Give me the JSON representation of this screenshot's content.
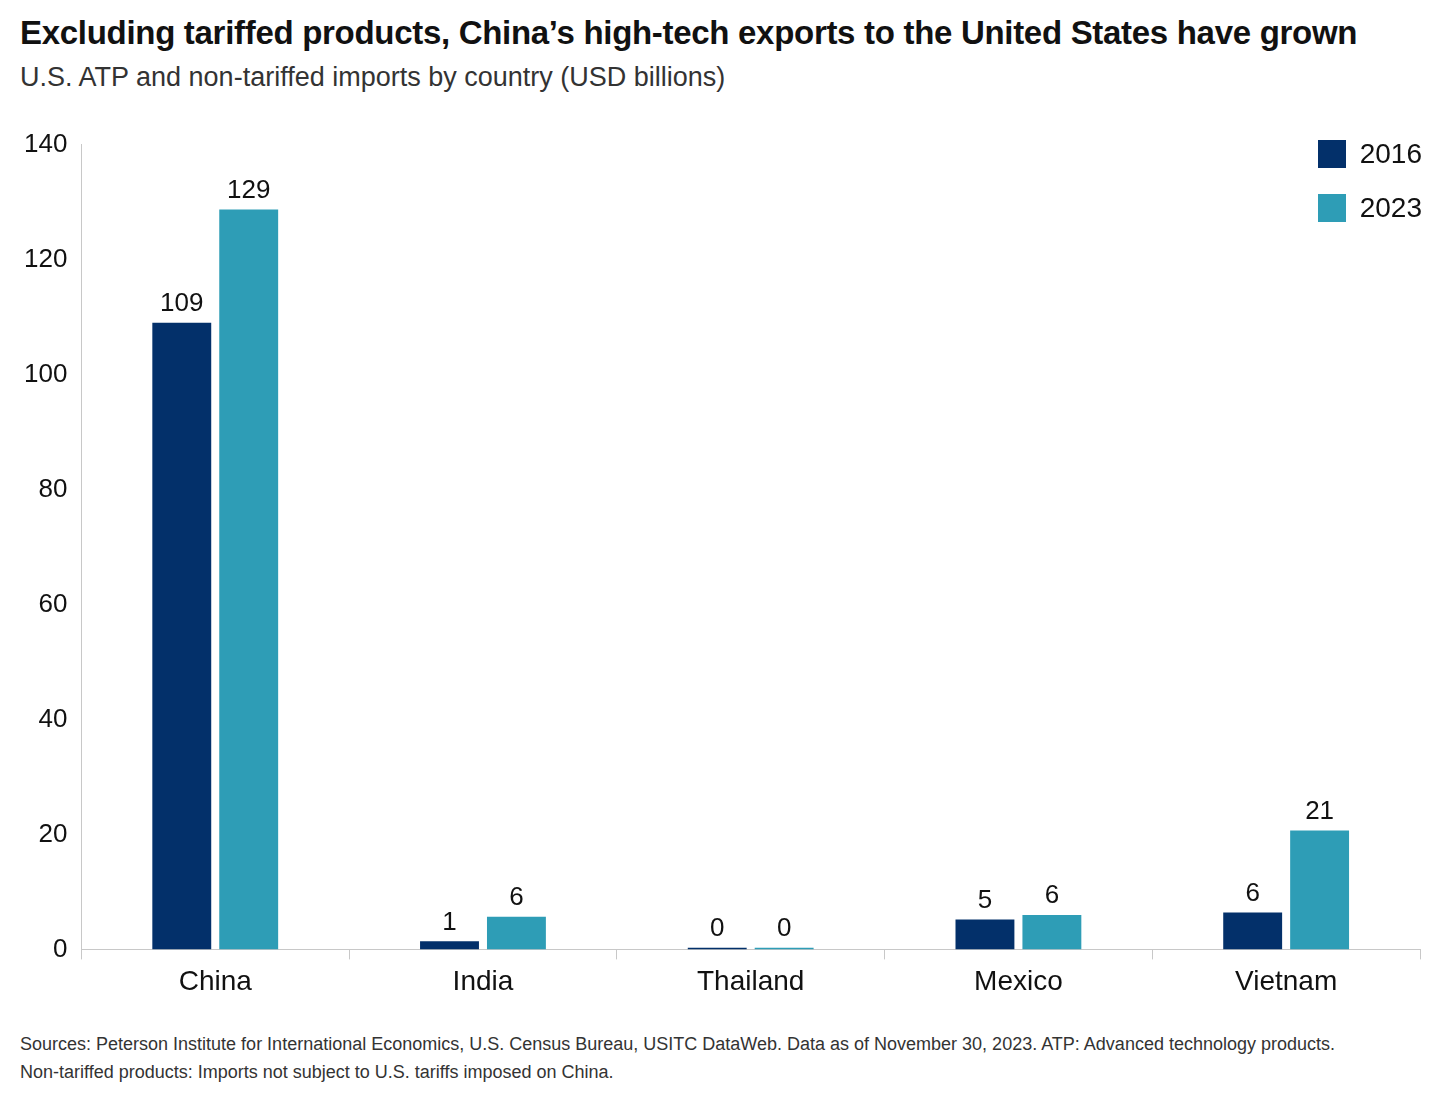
{
  "chart_data": {
    "type": "bar",
    "title": "Excluding tariffed products, China’s high-tech exports to the United States have grown",
    "subtitle": "U.S. ATP and non-tariffed imports by country (USD billions)",
    "categories": [
      "China",
      "India",
      "Thailand",
      "Mexico",
      "Vietnam"
    ],
    "series": [
      {
        "name": "2016",
        "color": "#03306a",
        "values": [
          109,
          1.4,
          0.3,
          5.2,
          6.4
        ],
        "value_labels": [
          "109",
          "1",
          "0",
          "5",
          "6"
        ]
      },
      {
        "name": "2023",
        "color": "#2e9db6",
        "values": [
          128.7,
          5.7,
          0.3,
          6,
          20.7
        ],
        "value_labels": [
          "129",
          "6",
          "0",
          "6",
          "21"
        ]
      }
    ],
    "ylim": [
      0,
      140
    ],
    "yticks": [
      0,
      20,
      40,
      60,
      80,
      100,
      120,
      140
    ],
    "grid": false,
    "legend": "top-right",
    "data_labels": true,
    "notes": [
      "Sources: Peterson Institute for International Economics, U.S. Census Bureau, USITC DataWeb. Data as of November 30, 2023. ATP: Advanced technology products.",
      "Non-tariffed products: Imports not subject to U.S. tariffs imposed on China."
    ]
  }
}
